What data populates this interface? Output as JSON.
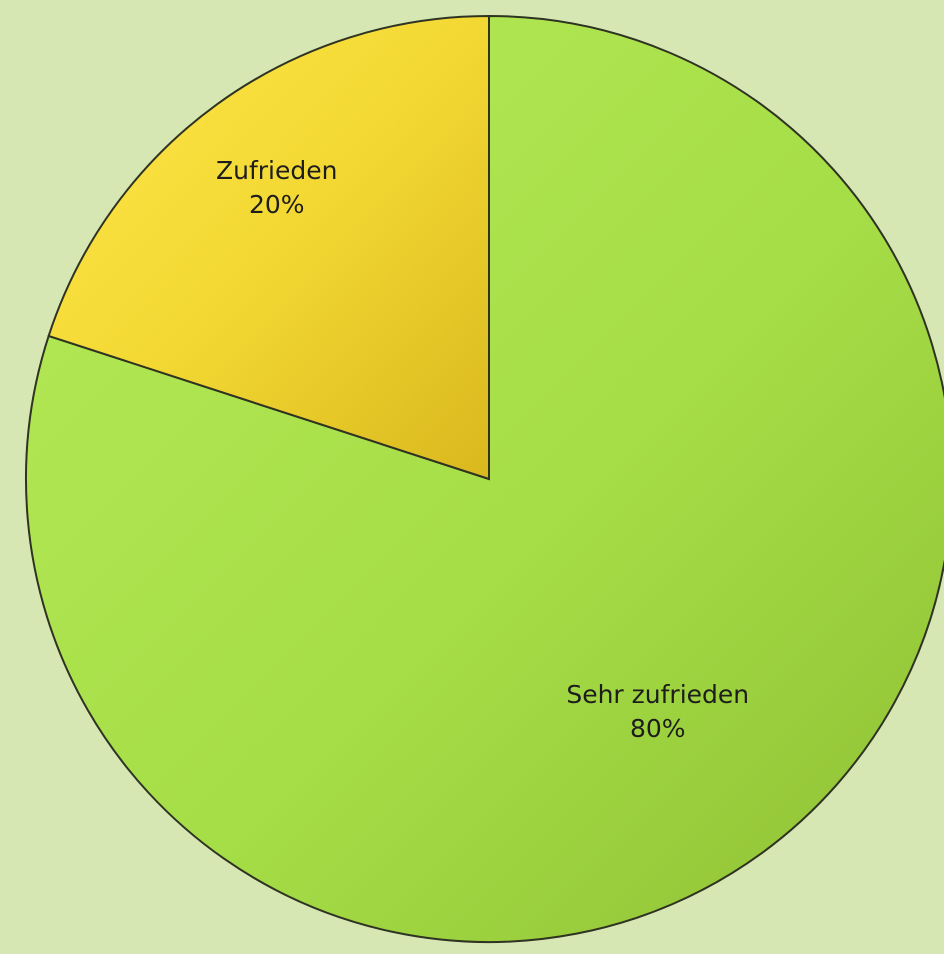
{
  "chart_data": {
    "type": "pie",
    "title": "",
    "slices": [
      {
        "label": "Sehr zufrieden",
        "value": 80,
        "value_label": "80%",
        "color": "#a6de47"
      },
      {
        "label": "Zufrieden",
        "value": 20,
        "value_label": "20%",
        "color": "#f5d832"
      }
    ],
    "start_direction": "top",
    "direction": "clockwise",
    "legend": "none",
    "colors": {
      "background": "#d7e7b4",
      "outline": "#2f3322"
    }
  }
}
